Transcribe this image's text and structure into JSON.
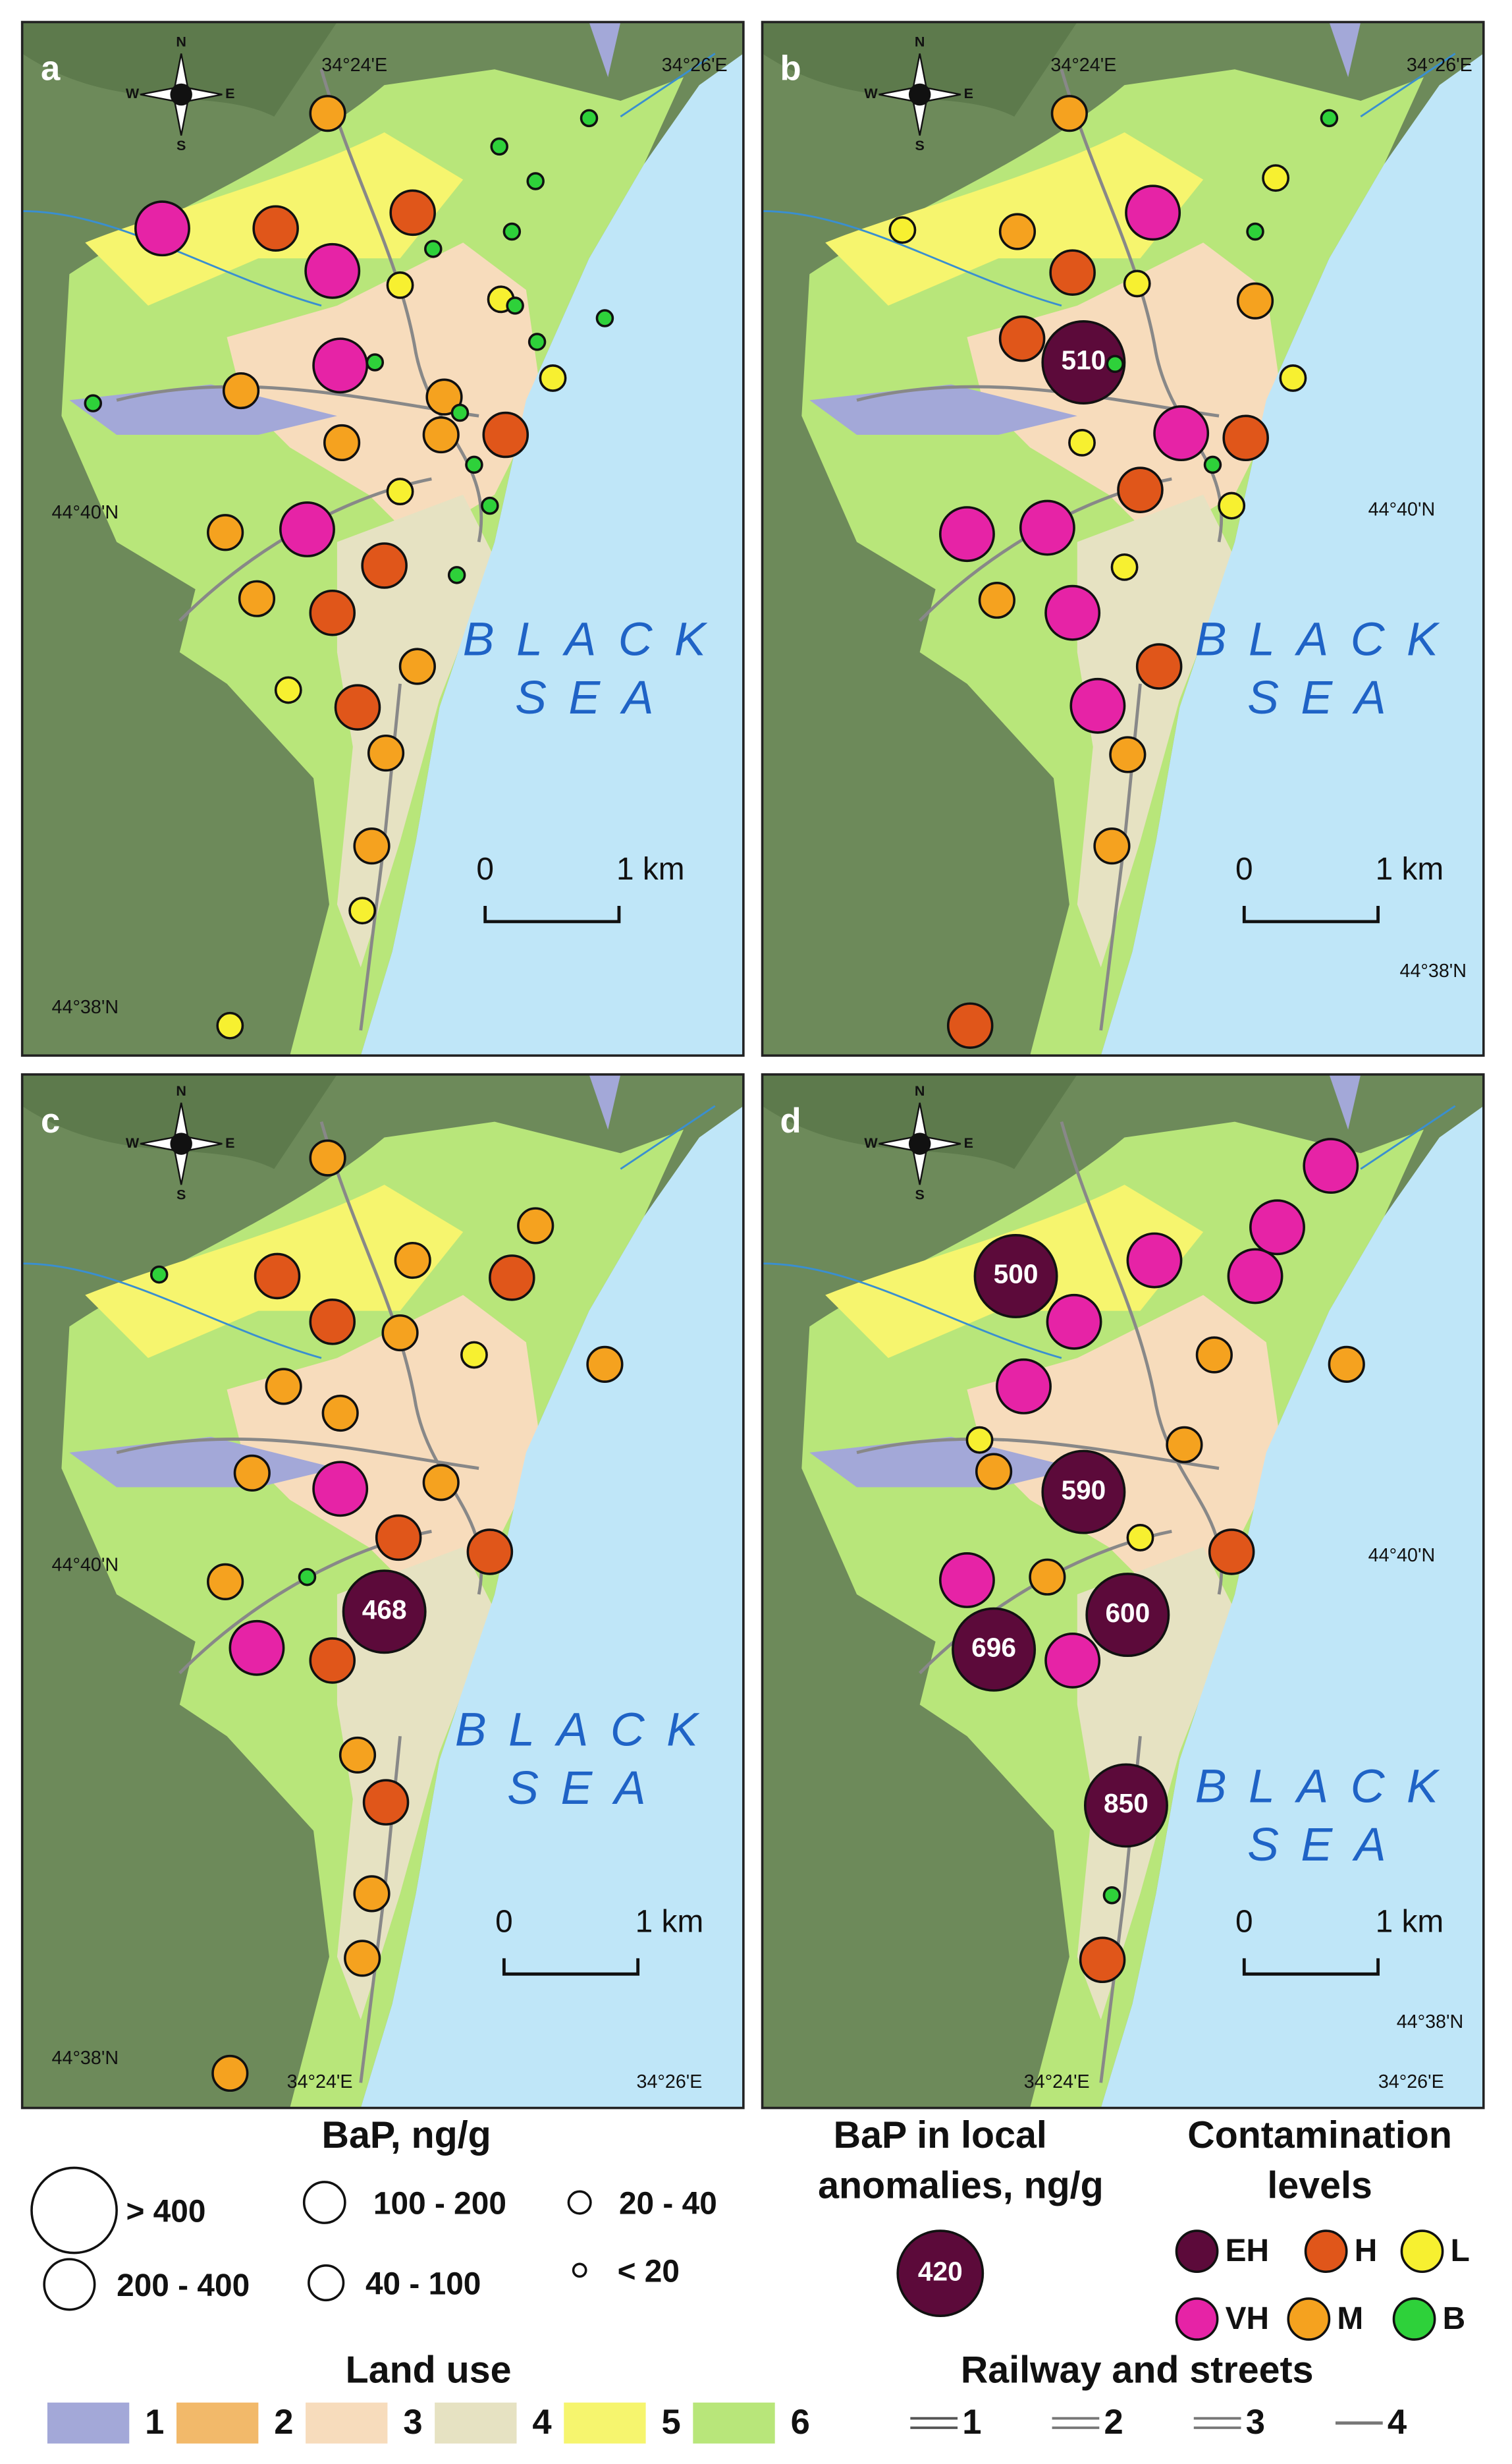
{
  "panels": [
    {
      "label": "a",
      "lon_labels": [
        "34°24'E",
        "34°26'E"
      ],
      "lat_labels": [
        "44°40'N",
        "44°38'N"
      ],
      "sea_label": [
        "BLACK",
        "SEA"
      ],
      "scale": [
        "0",
        "1 km"
      ],
      "points": [
        "M",
        "B",
        "B",
        "VH",
        "H",
        "H",
        "B",
        "B",
        "B",
        "VH",
        "L",
        "L",
        "B",
        "B",
        "B",
        "VH",
        "B",
        "L",
        "M",
        "M",
        "B",
        "B",
        "M",
        "M",
        "H",
        "B",
        "L",
        "B",
        "VH",
        "M",
        "H",
        "B",
        "M",
        "H",
        "M",
        "L",
        "H",
        "M",
        "M",
        "L",
        "L"
      ],
      "anomalies": []
    },
    {
      "label": "b",
      "lon_labels": [
        "34°24'E",
        "34°26'E"
      ],
      "lat_labels": [
        "44°40'N",
        "44°38'N"
      ],
      "sea_label": [
        "BLACK",
        "SEA"
      ],
      "scale": [
        "0",
        "1 km"
      ],
      "points": [
        "M",
        "B",
        "L",
        "L",
        "M",
        "VH",
        "B",
        "H",
        "L",
        "M",
        "H",
        "EH",
        "B",
        "L",
        "VH",
        "H",
        "L",
        "B",
        "H",
        "L",
        "VH",
        "VH",
        "L",
        "M",
        "VH",
        "H",
        "VH",
        "M",
        "M",
        "H"
      ],
      "anomalies": [
        510
      ]
    },
    {
      "label": "c",
      "lon_labels": [
        "34°24'E",
        "34°26'E"
      ],
      "lat_labels": [
        "44°40'N",
        "44°38'N"
      ],
      "sea_label": [
        "BLACK",
        "SEA"
      ],
      "scale": [
        "0",
        "1 km"
      ],
      "points": [
        "M",
        "M",
        "B",
        "H",
        "M",
        "H",
        "H",
        "M",
        "L",
        "M",
        "M",
        "M",
        "M",
        "VH",
        "M",
        "H",
        "H",
        "M",
        "B",
        "EH",
        "VH",
        "H",
        "M",
        "H",
        "M",
        "M",
        "M"
      ],
      "anomalies": [
        468
      ]
    },
    {
      "label": "d",
      "lon_labels": [
        "34°24'E",
        "34°26'E"
      ],
      "lat_labels": [
        "44°40'N",
        "44°38'N"
      ],
      "sea_label": [
        "BLACK",
        "SEA"
      ],
      "scale": [
        "0",
        "1 km"
      ],
      "points": [
        "VH",
        "VH",
        "EH",
        "VH",
        "VH",
        "VH",
        "M",
        "M",
        "VH",
        "L",
        "M",
        "M",
        "EH",
        "L",
        "H",
        "VH",
        "M",
        "EH",
        "EH",
        "VH",
        "EH",
        "B",
        "H"
      ],
      "anomalies": [
        500,
        590,
        600,
        696,
        850
      ]
    }
  ],
  "compass": [
    "N",
    "S",
    "W",
    "E"
  ],
  "legend": {
    "bap_title": "BaP, ng/g",
    "bap_classes": [
      "> 400",
      "200 - 400",
      "100 - 200",
      "40 - 100",
      "20 - 40",
      "< 20"
    ],
    "anomaly_title": [
      "BaP in local",
      "anomalies, ng/g"
    ],
    "anomaly_example": 420,
    "levels_title": [
      "Contamination",
      "levels"
    ],
    "levels": [
      {
        "code": "EH",
        "color": "#5c0a3a"
      },
      {
        "code": "H",
        "color": "#e0561a"
      },
      {
        "code": "L",
        "color": "#f7f030"
      },
      {
        "code": "VH",
        "color": "#e623a6"
      },
      {
        "code": "M",
        "color": "#f5a21f"
      },
      {
        "code": "B",
        "color": "#2ed13a"
      }
    ],
    "land_use_title": "Land use",
    "land_use": [
      {
        "label": "1",
        "color": "#a3a8d8"
      },
      {
        "label": "2",
        "color": "#f2b96a"
      },
      {
        "label": "3",
        "color": "#f7dcbc"
      },
      {
        "label": "4",
        "color": "#e6e2c2"
      },
      {
        "label": "5",
        "color": "#f6f56e"
      },
      {
        "label": "6",
        "color": "#b8e67a"
      }
    ],
    "streets_title": "Railway and streets",
    "streets": [
      "1",
      "2",
      "3",
      "4"
    ]
  }
}
